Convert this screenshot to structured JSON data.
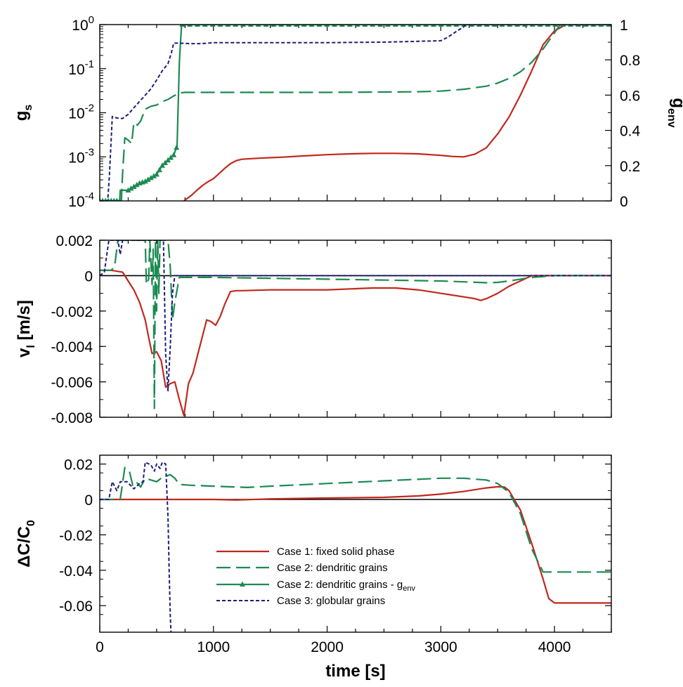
{
  "chart_data": [
    {
      "type": "line",
      "panel": "top",
      "ylabel_left": {
        "base": "g",
        "sub": "s"
      },
      "ylabel_right": {
        "base": "g",
        "sub": "env"
      },
      "xlim": [
        0,
        4500
      ],
      "ylim_left": [
        0.0001,
        1
      ],
      "yscale_left": "log",
      "ylim_right": [
        0,
        1
      ],
      "xticks": [
        0,
        1000,
        2000,
        3000,
        4000
      ],
      "yticks_left": [
        {
          "value": 0.0001,
          "base": "10",
          "exp": "-4"
        },
        {
          "value": 0.001,
          "base": "10",
          "exp": "-3"
        },
        {
          "value": 0.01,
          "base": "10",
          "exp": "-2"
        },
        {
          "value": 0.1,
          "base": "10",
          "exp": "-1"
        },
        {
          "value": 1,
          "base": "10",
          "exp": "0"
        }
      ],
      "yticks_right": [
        {
          "value": 0,
          "label": "0"
        },
        {
          "value": 0.2,
          "label": "0.2"
        },
        {
          "value": 0.4,
          "label": "0.4"
        },
        {
          "value": 0.6,
          "label": "0.6"
        },
        {
          "value": 0.8,
          "label": "0.8"
        },
        {
          "value": 1,
          "label": "1"
        }
      ],
      "series": [
        {
          "name": "Case 1: fixed solid phase",
          "color": "#c0281e",
          "style": "solid",
          "axis": "left",
          "x": [
            740,
            800,
            850,
            900,
            950,
            1000,
            1050,
            1100,
            1150,
            1200,
            1250,
            1400,
            1600,
            1800,
            2000,
            2200,
            2400,
            2600,
            2800,
            3000,
            3100,
            3200,
            3300,
            3400,
            3500,
            3600,
            3700,
            3800,
            3900,
            4000,
            4100,
            4500
          ],
          "values": [
            0.0001,
            0.00013,
            0.00017,
            0.00022,
            0.00027,
            0.00032,
            0.00042,
            0.00055,
            0.0007,
            0.00082,
            0.00088,
            0.00093,
            0.00098,
            0.00105,
            0.00112,
            0.00117,
            0.0012,
            0.0012,
            0.00117,
            0.00108,
            0.00102,
            0.001,
            0.00115,
            0.0016,
            0.0033,
            0.008,
            0.025,
            0.09,
            0.35,
            0.72,
            1,
            1
          ]
        },
        {
          "name": "Case 2: dendritic grains",
          "color": "#1c8a52",
          "style": "dashed",
          "axis": "left",
          "x": [
            0,
            190,
            200,
            220,
            250,
            280,
            300,
            330,
            360,
            400,
            450,
            500,
            550,
            600,
            650,
            700,
            750,
            800,
            1000,
            1500,
            2000,
            2500,
            2800,
            3000,
            3200,
            3400,
            3500,
            3600,
            3700,
            3800,
            3900,
            4000,
            4050,
            4500
          ],
          "values": [
            0.0001,
            0.0001,
            0.0004,
            0.0027,
            0.0024,
            0.002,
            0.006,
            0.0052,
            0.0065,
            0.012,
            0.014,
            0.015,
            0.018,
            0.02,
            0.024,
            0.028,
            0.029,
            0.029,
            0.029,
            0.029,
            0.029,
            0.0295,
            0.03,
            0.031,
            0.034,
            0.04,
            0.047,
            0.06,
            0.085,
            0.14,
            0.28,
            0.65,
            1,
            1
          ]
        },
        {
          "name": "Case 2: dendritic grains - g",
          "name_sub": "env",
          "color": "#1c8a52",
          "style": "solid-triangle",
          "axis": "right",
          "x": [
            0,
            175,
            180,
            250,
            300,
            350,
            400,
            450,
            500,
            550,
            600,
            650,
            680,
            700,
            710,
            720,
            4500
          ],
          "values": [
            0,
            0,
            0.06,
            0.06,
            0.08,
            0.1,
            0.11,
            0.13,
            0.15,
            0.2,
            0.23,
            0.26,
            0.31,
            0.78,
            0.9,
            1,
            1
          ]
        },
        {
          "name": "Case 3: globular grains",
          "color": "#1c1e78",
          "style": "dotted",
          "axis": "left",
          "x": [
            0,
            70,
            85,
            110,
            150,
            200,
            250,
            300,
            350,
            400,
            450,
            500,
            550,
            600,
            630,
            650,
            700,
            800,
            900,
            1000,
            1500,
            2000,
            2500,
            3000,
            3050,
            3100,
            3150,
            3200,
            3220,
            4500
          ],
          "values": [
            0.0001,
            0.0001,
            0.0004,
            0.0082,
            0.0076,
            0.0074,
            0.0092,
            0.013,
            0.018,
            0.025,
            0.035,
            0.055,
            0.09,
            0.13,
            0.23,
            0.38,
            0.38,
            0.37,
            0.37,
            0.39,
            0.39,
            0.39,
            0.4,
            0.43,
            0.5,
            0.6,
            0.74,
            0.88,
            1,
            1
          ]
        }
      ]
    },
    {
      "type": "line",
      "panel": "middle",
      "ylabel": {
        "base": "v",
        "sub": "l",
        "rest": " [m/s]"
      },
      "xlim": [
        0,
        4500
      ],
      "ylim": [
        -0.008,
        0.002
      ],
      "xticks": [
        0,
        1000,
        2000,
        3000,
        4000
      ],
      "yticks": [
        {
          "value": 0.002,
          "label": "0.002"
        },
        {
          "value": 0,
          "label": "0"
        },
        {
          "value": -0.002,
          "label": "-0.002"
        },
        {
          "value": -0.004,
          "label": "-0.004"
        },
        {
          "value": -0.006,
          "label": "-0.006"
        },
        {
          "value": -0.008,
          "label": "-0.008"
        }
      ],
      "series": [
        {
          "name": "Case 1: fixed solid phase",
          "color": "#c0281e",
          "style": "solid",
          "x": [
            0,
            100,
            150,
            200,
            250,
            300,
            350,
            400,
            430,
            460,
            500,
            540,
            580,
            620,
            660,
            700,
            740,
            780,
            820,
            860,
            900,
            940,
            980,
            1020,
            1060,
            1100,
            1150,
            1200,
            1250,
            1500,
            1800,
            2000,
            2200,
            2400,
            2600,
            2800,
            3000,
            3200,
            3300,
            3350,
            3400,
            3500,
            3600,
            3700,
            3800,
            3900,
            4000,
            4500
          ],
          "values": [
            0.0003,
            0.0003,
            0.00025,
            0.0002,
            -0.0003,
            -0.0008,
            -0.0015,
            -0.0025,
            -0.0035,
            -0.0044,
            -0.0043,
            -0.0048,
            -0.0063,
            -0.0061,
            -0.006,
            -0.007,
            -0.0079,
            -0.0061,
            -0.0055,
            -0.0045,
            -0.0035,
            -0.0025,
            -0.0026,
            -0.0028,
            -0.0023,
            -0.0016,
            -0.0009,
            -0.00085,
            -0.00085,
            -0.0008,
            -0.0008,
            -0.0008,
            -0.00075,
            -0.0007,
            -0.0007,
            -0.0008,
            -0.001,
            -0.0012,
            -0.0013,
            -0.0014,
            -0.0013,
            -0.001,
            -0.0006,
            -0.0003,
            0,
            0,
            0,
            0
          ]
        },
        {
          "name": "Case 2: dendritic grains",
          "color": "#1c8a52",
          "style": "dashed",
          "x": [
            0,
            100,
            130,
            160,
            180,
            200,
            240,
            300,
            350,
            400,
            410,
            430,
            440,
            460,
            470,
            480,
            490,
            500,
            510,
            520,
            530,
            560,
            580,
            600,
            620,
            640,
            660,
            680,
            700,
            1000,
            1500,
            2000,
            2500,
            3000,
            3200,
            3400,
            3500,
            3600,
            3700,
            3800,
            4000,
            4500
          ],
          "values": [
            0.0003,
            0.0003,
            0.0005,
            0.002,
            0.002,
            0.002,
            0.002,
            0.002,
            0.002,
            0.002,
            -0.0005,
            -0.0002,
            0.002,
            -0.0005,
            0.0015,
            -0.0075,
            0.002,
            -0.002,
            0.002,
            -0.001,
            0.002,
            0.002,
            0.002,
            0.002,
            0.0005,
            -0.0025,
            -0.0015,
            -0.0008,
            -0.0001,
            -0.0001,
            -0.00015,
            -0.0002,
            -0.00025,
            -0.0003,
            -0.00035,
            -0.0004,
            -0.00038,
            -0.0003,
            -0.0002,
            -0.0001,
            0,
            0
          ]
        },
        {
          "name": "Case 3: globular grains",
          "color": "#1c1e78",
          "style": "dotted",
          "x": [
            0,
            40,
            80,
            120,
            160,
            180,
            200,
            300,
            400,
            500,
            540,
            560,
            580,
            600,
            620,
            640,
            660,
            700,
            1000,
            2000,
            3000,
            3500,
            4000,
            4500
          ],
          "values": [
            0,
            0.0002,
            0.002,
            0.002,
            0.002,
            0.0012,
            0.002,
            0.002,
            0.002,
            0.002,
            0.002,
            0.002,
            -0.0045,
            -0.0065,
            -0.004,
            -0.001,
            0,
            0,
            0,
            0,
            0,
            0,
            0,
            0
          ]
        }
      ]
    },
    {
      "type": "line",
      "panel": "bottom",
      "ylabel": {
        "delta": "ΔC/C",
        "sub": "0"
      },
      "xlabel": "time [s]",
      "xlim": [
        0,
        4500
      ],
      "ylim": [
        -0.075,
        0.025
      ],
      "xticks": [
        {
          "value": 0,
          "label": "0"
        },
        {
          "value": 1000,
          "label": "1000"
        },
        {
          "value": 2000,
          "label": "2000"
        },
        {
          "value": 3000,
          "label": "3000"
        },
        {
          "value": 4000,
          "label": "4000"
        }
      ],
      "yticks": [
        {
          "value": 0.02,
          "label": "0.02"
        },
        {
          "value": 0,
          "label": "0"
        },
        {
          "value": -0.02,
          "label": "-0.02"
        },
        {
          "value": -0.04,
          "label": "-0.04"
        },
        {
          "value": -0.06,
          "label": "-0.06"
        }
      ],
      "series": [
        {
          "name": "Case 1: fixed solid phase",
          "color": "#c0281e",
          "style": "solid",
          "x": [
            0,
            500,
            1000,
            1200,
            1500,
            2000,
            2500,
            2800,
            3000,
            3200,
            3400,
            3500,
            3560,
            3600,
            3700,
            3800,
            3900,
            3950,
            4000,
            4500
          ],
          "values": [
            0,
            0,
            0,
            -0.0003,
            0.0003,
            0.0008,
            0.0012,
            0.002,
            0.003,
            0.0045,
            0.0065,
            0.0072,
            0.007,
            0.005,
            -0.006,
            -0.025,
            -0.045,
            -0.056,
            -0.0585,
            -0.0585
          ]
        },
        {
          "name": "Case 2: dendritic grains",
          "color": "#1c8a52",
          "style": "dashed",
          "x": [
            0,
            180,
            220,
            260,
            290,
            320,
            360,
            400,
            450,
            500,
            550,
            580,
            620,
            660,
            700,
            800,
            1000,
            1300,
            1500,
            2000,
            2500,
            3000,
            3200,
            3400,
            3500,
            3600,
            3700,
            3800,
            3900,
            4000,
            4500
          ],
          "values": [
            0,
            0,
            0.018,
            0.016,
            0.008,
            0.01,
            0.007,
            0.012,
            0.011,
            0.01,
            0.0125,
            0.013,
            0.014,
            0.012,
            0.0085,
            0.008,
            0.0075,
            0.0068,
            0.0075,
            0.009,
            0.0105,
            0.012,
            0.012,
            0.011,
            0.009,
            0.004,
            -0.008,
            -0.028,
            -0.041,
            -0.041,
            -0.041
          ]
        },
        {
          "name": "Case 3: globular grains",
          "color": "#1c1e78",
          "style": "dotted",
          "x": [
            0,
            80,
            110,
            150,
            180,
            240,
            300,
            350,
            380,
            400,
            450,
            480,
            500,
            530,
            550,
            580,
            600,
            610,
            620,
            630
          ],
          "values": [
            0,
            0,
            0.01,
            0.005,
            0.01,
            0.01,
            0.006,
            0.009,
            0.01,
            0.021,
            0.0195,
            0.016,
            0.02,
            0.0175,
            0.021,
            0.02,
            -0.01,
            -0.04,
            -0.065,
            -0.08
          ]
        }
      ]
    }
  ],
  "legend": [
    {
      "label": "Case 1: fixed solid phase"
    },
    {
      "label": "Case 2: dendritic grains"
    },
    {
      "label": "Case 2: dendritic grains - g",
      "sub": "env"
    },
    {
      "label": "Case 3: globular grains"
    }
  ]
}
